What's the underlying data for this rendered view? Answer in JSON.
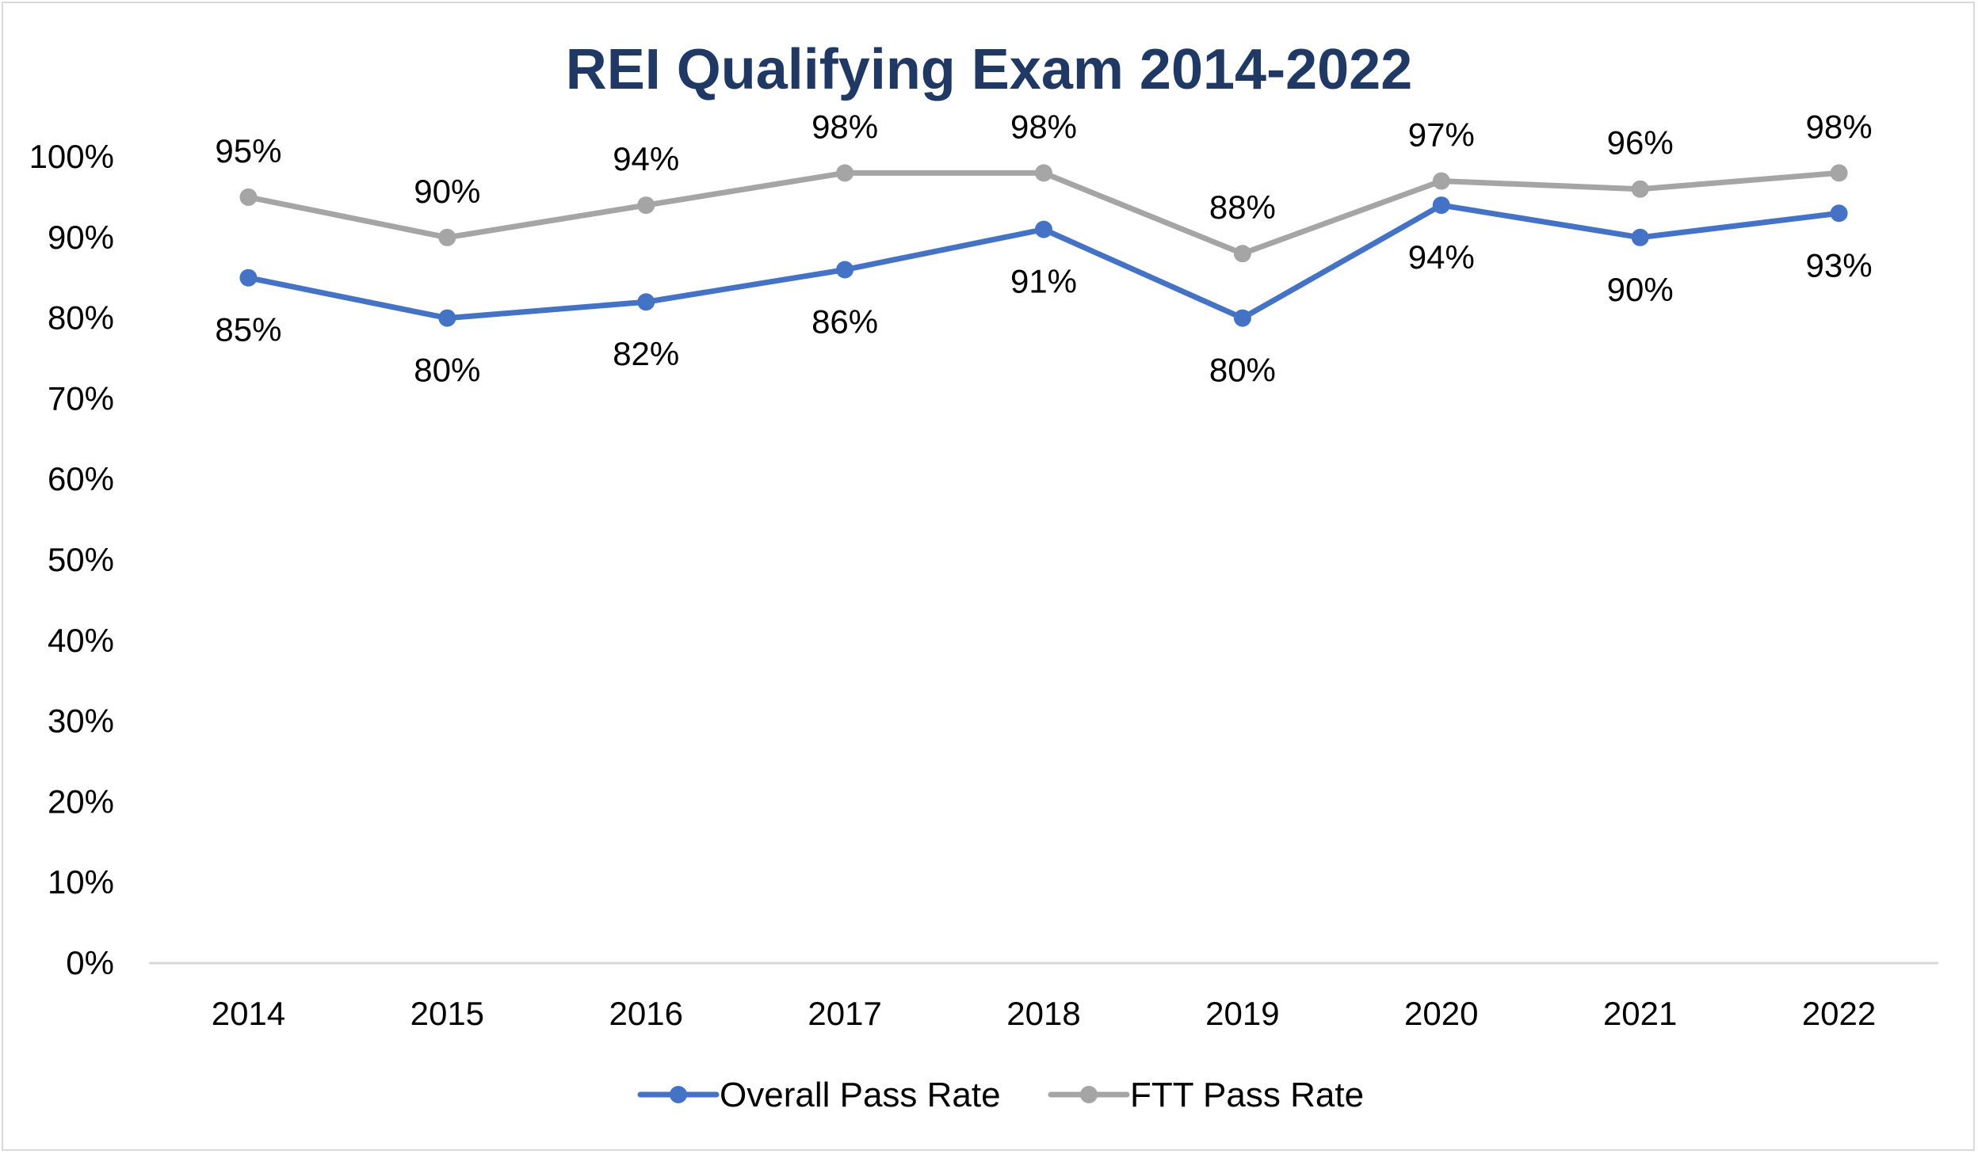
{
  "chart_data": {
    "type": "line",
    "title": "REI Qualifying Exam 2014-2022",
    "xlabel": "",
    "ylabel": "",
    "categories": [
      "2014",
      "2015",
      "2016",
      "2017",
      "2018",
      "2019",
      "2020",
      "2021",
      "2022"
    ],
    "y_ticks": [
      "0%",
      "10%",
      "20%",
      "30%",
      "40%",
      "50%",
      "60%",
      "70%",
      "80%",
      "90%",
      "100%"
    ],
    "ylim": [
      0,
      100
    ],
    "grid": false,
    "legend_position": "bottom",
    "series": [
      {
        "name": "Overall Pass Rate",
        "color": "#4472c4",
        "values": [
          85,
          80,
          82,
          86,
          91,
          80,
          94,
          90,
          93
        ],
        "labels": [
          "85%",
          "80%",
          "82%",
          "86%",
          "91%",
          "80%",
          "94%",
          "90%",
          "93%"
        ]
      },
      {
        "name": "FTT Pass Rate",
        "color": "#a5a5a5",
        "values": [
          95,
          90,
          94,
          98,
          98,
          88,
          97,
          96,
          98
        ],
        "labels": [
          "95%",
          "90%",
          "94%",
          "98%",
          "98%",
          "88%",
          "97%",
          "96%",
          "98%"
        ]
      }
    ],
    "colors": {
      "title": "#1f3864",
      "axis_line": "#d9d9d9"
    }
  }
}
